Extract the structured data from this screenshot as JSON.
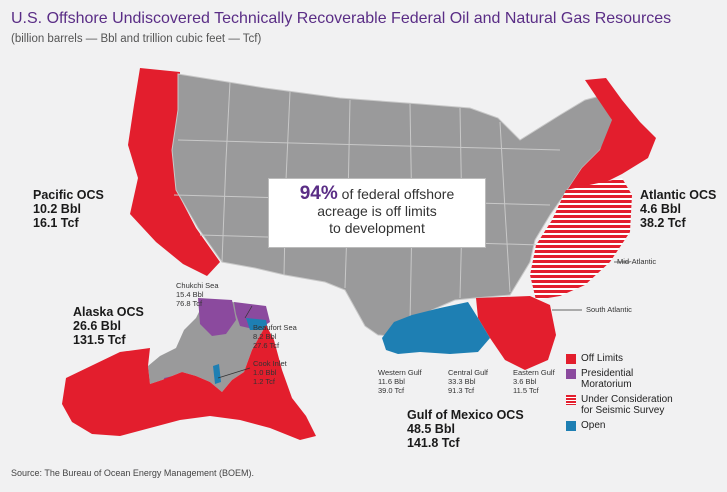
{
  "title": "U.S. Offshore Undiscovered Technically Recoverable Federal Oil and Natural Gas Resources",
  "subtitle": "(billion barrels — Bbl and trillion cubic feet — Tcf)",
  "colors": {
    "off_limits": "#e31e2d",
    "moratorium": "#8b4a9e",
    "open": "#1e7fb3",
    "land": "#9a9a9b",
    "background": "#f1f1f2"
  },
  "regions": {
    "pacific": {
      "name": "Pacific OCS",
      "oil": "10.2 Bbl",
      "gas": "16.1 Tcf"
    },
    "atlantic": {
      "name": "Atlantic OCS",
      "oil": "4.6 Bbl",
      "gas": "38.2 Tcf"
    },
    "alaska": {
      "name": "Alaska OCS",
      "oil": "26.6 Bbl",
      "gas": "131.5 Tcf"
    },
    "gulf": {
      "name": "Gulf of Mexico OCS",
      "oil": "48.5 Bbl",
      "gas": "141.8 Tcf"
    }
  },
  "subregions": {
    "mid_atlantic": "Mid-Atlantic",
    "south_atlantic": "South Atlantic",
    "chukchi": {
      "name": "Chukchi Sea",
      "oil": "15.4 Bbl",
      "gas": "76.8 Tcf"
    },
    "beaufort": {
      "name": "Beaufort Sea",
      "oil": "8.2 Bbl",
      "gas": "27.6 Tcf"
    },
    "cook": {
      "name": "Cook Inlet",
      "oil": "1.0 Bbl",
      "gas": "1.2 Tcf"
    },
    "western_gulf": {
      "name": "Western Gulf",
      "oil": "11.6 Bbl",
      "gas": "39.0 Tcf"
    },
    "central_gulf": {
      "name": "Central Gulf",
      "oil": "33.3 Bbl",
      "gas": "91.3 Tcf"
    },
    "eastern_gulf": {
      "name": "Eastern Gulf",
      "oil": "3.6 Bbl",
      "gas": "11.5 Tcf"
    }
  },
  "callout": {
    "percent": "94%",
    "line1": " of federal offshore",
    "line2": "acreage is off limits",
    "line3": "to development"
  },
  "legend": [
    {
      "label": [
        "Off Limits"
      ],
      "color": "#e31e2d",
      "pattern": "solid"
    },
    {
      "label": [
        "Presidential",
        "Moratorium"
      ],
      "color": "#8b4a9e",
      "pattern": "solid"
    },
    {
      "label": [
        "Under Consideration",
        "for Seismic Survey"
      ],
      "color": "#e31e2d",
      "pattern": "striped"
    },
    {
      "label": [
        "Open"
      ],
      "color": "#1e7fb3",
      "pattern": "solid"
    }
  ],
  "source": "Source: The Bureau of Ocean Energy Management (BOEM)."
}
